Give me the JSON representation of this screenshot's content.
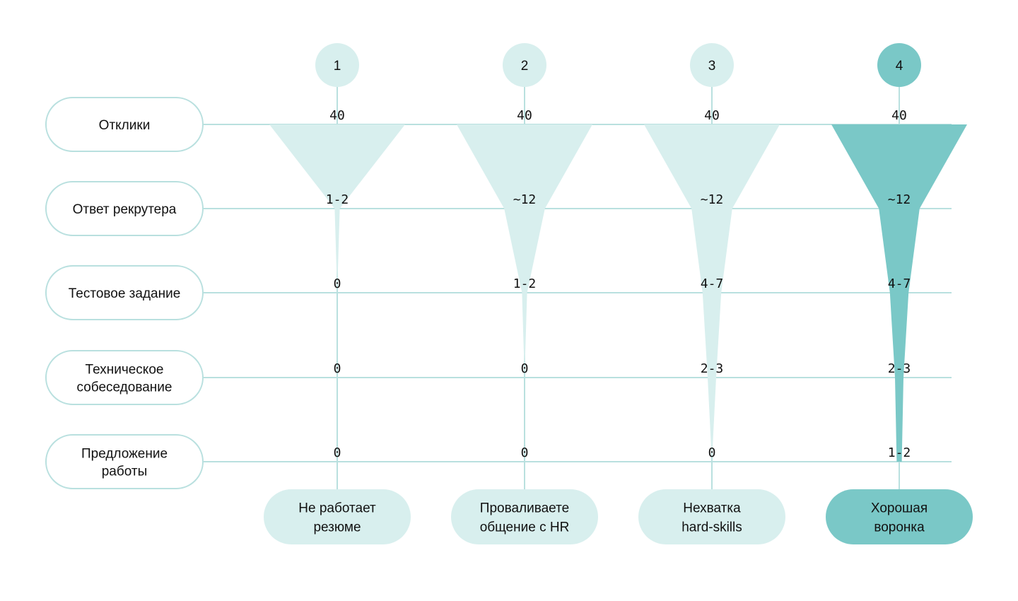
{
  "colors": {
    "line": "#b9e0df",
    "light_fill": "#d8efee",
    "dark_fill": "#7ac8c7",
    "text": "#111111"
  },
  "stages": [
    {
      "label_lines": [
        "Отклики"
      ]
    },
    {
      "label_lines": [
        "Ответ рекрутера"
      ]
    },
    {
      "label_lines": [
        "Тестовое задание"
      ]
    },
    {
      "label_lines": [
        "Техническое",
        "собеседование"
      ]
    },
    {
      "label_lines": [
        "Предложение",
        "работы"
      ]
    }
  ],
  "funnels": [
    {
      "number": "1",
      "highlight": false,
      "values": [
        "40",
        "1-2",
        "0",
        "0",
        "0"
      ],
      "widths": [
        40,
        1.5,
        0,
        0,
        0
      ],
      "result_lines": [
        "Не работает",
        "резюме"
      ]
    },
    {
      "number": "2",
      "highlight": false,
      "values": [
        "40",
        "~12",
        "1-2",
        "0",
        "0"
      ],
      "widths": [
        40,
        12,
        1.5,
        0,
        0
      ],
      "result_lines": [
        "Проваливаете",
        "общение с HR"
      ]
    },
    {
      "number": "3",
      "highlight": false,
      "values": [
        "40",
        "~12",
        "4-7",
        "2-3",
        "0"
      ],
      "widths": [
        40,
        12,
        5.5,
        2.5,
        0
      ],
      "result_lines": [
        "Нехватка",
        "hard-skills"
      ]
    },
    {
      "number": "4",
      "highlight": true,
      "values": [
        "40",
        "~12",
        "4-7",
        "2-3",
        "1-2"
      ],
      "widths": [
        40,
        12,
        5.5,
        2.5,
        1.5
      ],
      "result_lines": [
        "Хорошая",
        "воронка"
      ]
    }
  ]
}
